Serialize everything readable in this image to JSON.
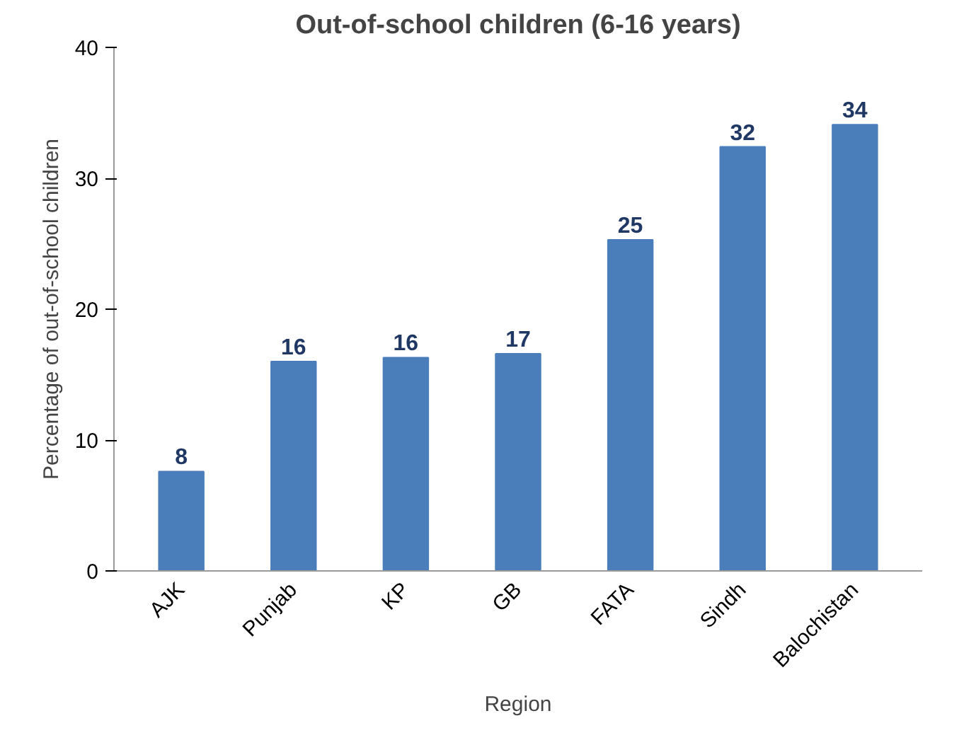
{
  "chart_data": {
    "type": "bar",
    "title": "Out-of-school children (6-16 years)",
    "xlabel": "Region",
    "ylabel": "Percentage of out-of-school children",
    "categories": [
      "AJK",
      "Punjab",
      "KP",
      "GB",
      "FATA",
      "Sindh",
      "Balochistan"
    ],
    "values": [
      7.6,
      16.0,
      16.3,
      16.6,
      25.3,
      32.4,
      34.1
    ],
    "value_labels": [
      "8",
      "16",
      "16",
      "17",
      "25",
      "32",
      "34"
    ],
    "color": "#4a7ebb",
    "ylim": [
      0,
      40
    ],
    "yticks": [
      0,
      10,
      20,
      30,
      40
    ],
    "grid": false
  }
}
